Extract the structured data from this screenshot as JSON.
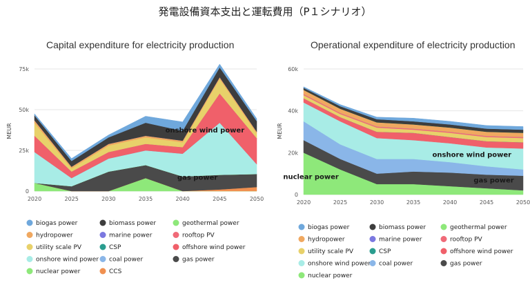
{
  "page": {
    "title": "発電設備資本支出と運転費用（P１シナリオ）"
  },
  "colors": {
    "biogas power": "#6fa8dc",
    "biomass power": "#3d3d3d",
    "geothermal power": "#8ee87a",
    "hydropower": "#f0a860",
    "marine power": "#7b78e0",
    "rooftop PV": "#f06a78",
    "utility scale PV": "#e8d16a",
    "CSP": "#2a9d8f",
    "offshore wind power": "#f0606a",
    "onshore wind power": "#a8ece6",
    "coal power": "#8ab6e8",
    "gas power": "#4a4a4a",
    "nuclear power": "#8ee87a",
    "CCS": "#f09050"
  },
  "chart_data": [
    {
      "type": "area",
      "title": "Capital expenditure for electricity production",
      "ylabel": "MEUR",
      "x": [
        2020,
        2025,
        2030,
        2035,
        2040,
        2045,
        2050
      ],
      "ylim": [
        0,
        75000
      ],
      "yticks": [
        "0",
        "25k",
        "50k",
        "75k"
      ],
      "ytick_values": [
        0,
        25000,
        50000,
        75000
      ],
      "annotations": [
        {
          "text": "onshore wind power",
          "x": 2043,
          "y": 36000
        },
        {
          "text": "gas power",
          "x": 2042,
          "y": 7000
        }
      ],
      "series": [
        {
          "name": "geothermal power",
          "values": [
            5000,
            0,
            0,
            8000,
            0,
            0,
            0
          ]
        },
        {
          "name": "CCS",
          "values": [
            0,
            0,
            0,
            0,
            0,
            1000,
            2500
          ]
        },
        {
          "name": "gas power",
          "values": [
            0,
            3000,
            12000,
            8000,
            9000,
            9000,
            8000
          ]
        },
        {
          "name": "nuclear power",
          "values": [
            0,
            0,
            0,
            0,
            0,
            0,
            0
          ]
        },
        {
          "name": "onshore wind power",
          "values": [
            19000,
            5000,
            8000,
            9000,
            14000,
            32000,
            6000
          ]
        },
        {
          "name": "coal power",
          "values": [
            0,
            0,
            0,
            0,
            0,
            0,
            0
          ]
        },
        {
          "name": "offshore wind power",
          "values": [
            10000,
            4000,
            4000,
            4000,
            4000,
            18000,
            16000
          ]
        },
        {
          "name": "CSP",
          "values": [
            0,
            0,
            0,
            0,
            0,
            0,
            0
          ]
        },
        {
          "name": "rooftop PV",
          "values": [
            0,
            0,
            0,
            0,
            0,
            0,
            0
          ]
        },
        {
          "name": "utility scale PV",
          "values": [
            8000,
            2000,
            4000,
            4000,
            3000,
            9000,
            3000
          ]
        },
        {
          "name": "hydropower",
          "values": [
            1500,
            1000,
            1000,
            1000,
            1000,
            1000,
            1000
          ]
        },
        {
          "name": "marine power",
          "values": [
            0,
            0,
            0,
            0,
            0,
            0,
            0
          ]
        },
        {
          "name": "biomass power",
          "values": [
            3000,
            3500,
            4000,
            8000,
            6000,
            6000,
            6500
          ]
        },
        {
          "name": "biogas power",
          "values": [
            1000,
            1500,
            1500,
            4000,
            5500,
            2000,
            1500
          ]
        }
      ]
    },
    {
      "type": "area",
      "title": "Operational expenditure of electricity production",
      "ylabel": "MEUR",
      "x": [
        2020,
        2025,
        2030,
        2035,
        2040,
        2045,
        2050
      ],
      "ylim": [
        0,
        60000
      ],
      "yticks": [
        "0",
        "20k",
        "40k",
        "60k"
      ],
      "ytick_values": [
        0,
        20000,
        40000,
        60000
      ],
      "annotations": [
        {
          "text": "onshore wind power",
          "x": 2043,
          "y": 18000
        },
        {
          "text": "gas power",
          "x": 2046,
          "y": 5800
        },
        {
          "text": "nuclear power",
          "x": 2021,
          "y": 7500
        }
      ],
      "series": [
        {
          "name": "nuclear power",
          "values": [
            20000,
            12000,
            5000,
            5000,
            4000,
            3000,
            2000
          ]
        },
        {
          "name": "gas power",
          "values": [
            6000,
            5000,
            5000,
            6000,
            6500,
            6500,
            7000
          ]
        },
        {
          "name": "coal power",
          "values": [
            9000,
            7000,
            7000,
            6000,
            5000,
            4000,
            3000
          ]
        },
        {
          "name": "onshore wind power",
          "values": [
            9000,
            11000,
            10000,
            9000,
            9000,
            9000,
            10000
          ]
        },
        {
          "name": "offshore wind power",
          "values": [
            2000,
            2000,
            3000,
            3500,
            3000,
            3000,
            3000
          ]
        },
        {
          "name": "CSP",
          "values": [
            0,
            0,
            0,
            0,
            0,
            0,
            0
          ]
        },
        {
          "name": "utility scale PV",
          "values": [
            1500,
            1500,
            2000,
            1500,
            2000,
            2000,
            2000
          ]
        },
        {
          "name": "rooftop PV",
          "values": [
            500,
            500,
            500,
            500,
            500,
            500,
            500
          ]
        },
        {
          "name": "marine power",
          "values": [
            0,
            0,
            0,
            0,
            0,
            0,
            0
          ]
        },
        {
          "name": "hydropower",
          "values": [
            2000,
            2000,
            2000,
            2000,
            2000,
            2000,
            2000
          ]
        },
        {
          "name": "geothermal power",
          "values": [
            0,
            0,
            0,
            0,
            0,
            0,
            0
          ]
        },
        {
          "name": "biomass power",
          "values": [
            1000,
            1200,
            1500,
            1500,
            1500,
            1500,
            1500
          ]
        },
        {
          "name": "biogas power",
          "values": [
            500,
            800,
            1000,
            1500,
            1500,
            1500,
            1500
          ]
        }
      ]
    }
  ],
  "legends": [
    {
      "columns": [
        [
          "biogas power",
          "hydropower",
          "utility scale PV",
          "onshore wind power",
          "nuclear power"
        ],
        [
          "biomass power",
          "marine power",
          "CSP",
          "coal power",
          "CCS"
        ],
        [
          "geothermal power",
          "rooftop PV",
          "offshore wind power",
          "gas power"
        ]
      ]
    },
    {
      "columns": [
        [
          "biogas power",
          "hydropower",
          "utility scale PV",
          "onshore wind power",
          "nuclear power"
        ],
        [
          "biomass power",
          "marine power",
          "CSP",
          "coal power"
        ],
        [
          "geothermal power",
          "rooftop PV",
          "offshore wind power",
          "gas power"
        ]
      ]
    }
  ]
}
